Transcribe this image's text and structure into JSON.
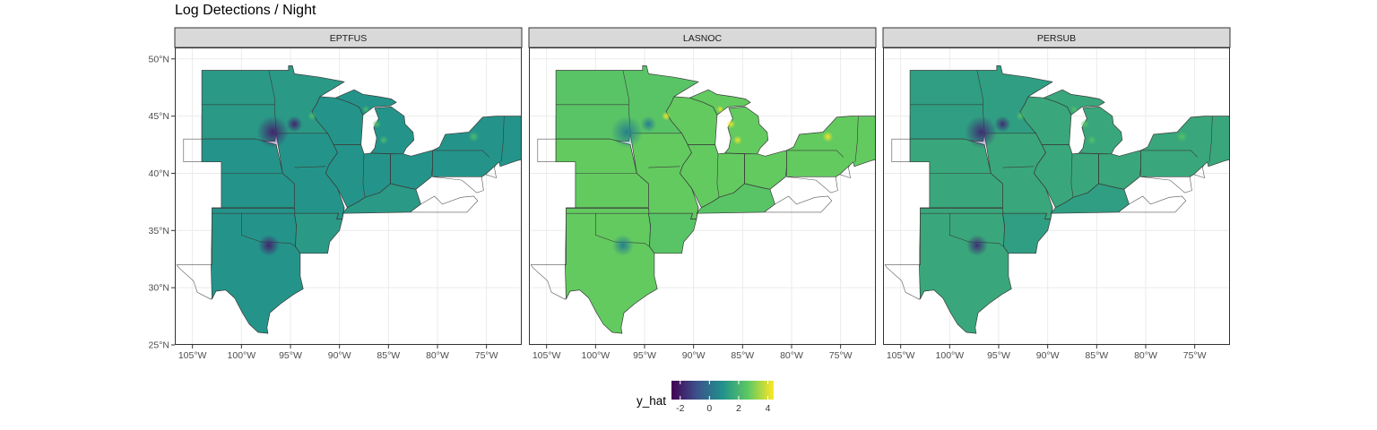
{
  "title": "Log Detections / Night",
  "legend": {
    "title": "y_hat",
    "breaks": [
      "-2",
      "0",
      "2",
      "4"
    ],
    "break_values": [
      -2,
      0,
      2,
      4
    ],
    "limits": [
      -2.6,
      4.4
    ],
    "colors": [
      "#440154",
      "#3b528b",
      "#21918c",
      "#5ec962",
      "#fde725"
    ]
  },
  "axes": {
    "x_ticks": [
      {
        "lon": -105,
        "label": "105°W"
      },
      {
        "lon": -100,
        "label": "100°W"
      },
      {
        "lon": -95,
        "label": "95°W"
      },
      {
        "lon": -90,
        "label": "90°W"
      },
      {
        "lon": -85,
        "label": "85°W"
      },
      {
        "lon": -80,
        "label": "80°W"
      },
      {
        "lon": -75,
        "label": "75°W"
      }
    ],
    "y_ticks": [
      {
        "lat": 50,
        "label": "50°N"
      },
      {
        "lat": 45,
        "label": "45°N"
      },
      {
        "lat": 40,
        "label": "40°N"
      },
      {
        "lat": 35,
        "label": "35°N"
      },
      {
        "lat": 30,
        "label": "30°N"
      },
      {
        "lat": 25,
        "label": "25°N"
      }
    ],
    "lon_range": [
      -106.8,
      -71.4
    ],
    "lat_range": [
      25.0,
      51.0
    ]
  },
  "chart_data": {
    "type": "heatmap",
    "panels": [
      {
        "name": "EPTFUS",
        "base_value": 1.0,
        "strong_value": 1.15,
        "hotspot_low": -1.8,
        "hotspot_high": 2.2
      },
      {
        "name": "LASNOC",
        "base_value": 2.7,
        "strong_value": 2.5,
        "hotspot_low": 0.4,
        "hotspot_high": 4.2
      },
      {
        "name": "PERSUB",
        "base_value": 1.6,
        "strong_value": 1.3,
        "hotspot_low": -1.6,
        "hotspot_high": 2.4
      }
    ]
  }
}
